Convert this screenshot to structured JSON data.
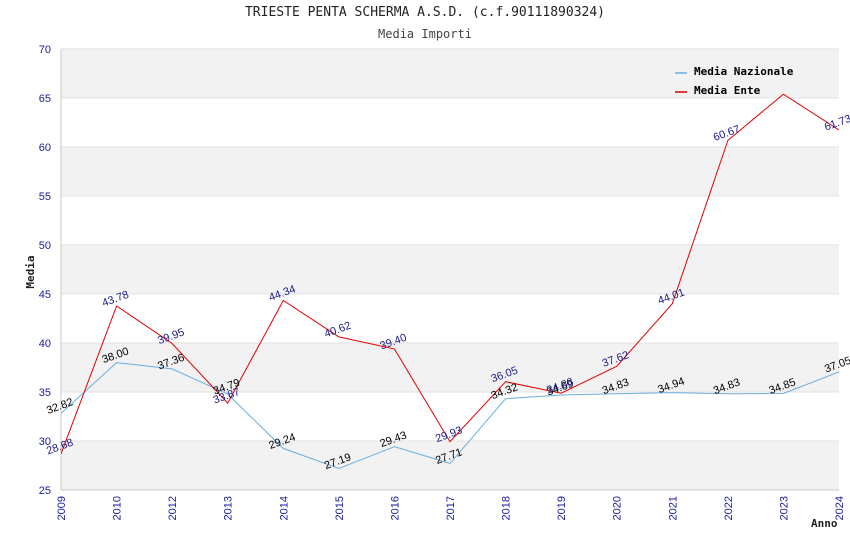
{
  "chart_data": {
    "type": "line",
    "title": "TRIESTE PENTA SCHERMA A.S.D. (c.f.90111890324)",
    "subtitle": "Media Importi",
    "xlabel": "Anno",
    "ylabel": "Media",
    "ylim": [
      25,
      70
    ],
    "yticks": [
      25,
      30,
      35,
      40,
      45,
      50,
      55,
      60,
      65,
      70
    ],
    "categories": [
      "2009",
      "2010",
      "2012",
      "2013",
      "2014",
      "2015",
      "2016",
      "2017",
      "2018",
      "2019",
      "2020",
      "2021",
      "2022",
      "2023",
      "2024"
    ],
    "legend_position": "top-right",
    "grid": true,
    "series": [
      {
        "name": "Media Nazionale",
        "color": "#6aaee0",
        "values": [
          32.82,
          38.0,
          37.36,
          34.79,
          29.24,
          27.19,
          29.43,
          27.71,
          34.32,
          34.69,
          34.83,
          34.94,
          34.83,
          34.85,
          37.05
        ],
        "labels": [
          "32.82",
          "38.00",
          "37.36",
          "34.79",
          "29.24",
          "27.19",
          "29.43",
          "27.71",
          "34.32",
          "34.69",
          "34.83",
          "34.94",
          "34.83",
          "34.85",
          "37.05"
        ]
      },
      {
        "name": "Media Ente",
        "color": "#e00000",
        "values": [
          28.68,
          43.78,
          39.95,
          33.87,
          44.34,
          40.62,
          39.4,
          29.93,
          36.05,
          34.88,
          37.62,
          44.01,
          60.67,
          65.39,
          61.73
        ],
        "labels": [
          "28.68",
          "43.78",
          "39.95",
          "33.87",
          "44.34",
          "40.62",
          "39.40",
          "29.93",
          "36.05",
          "34.88",
          "37.62",
          "44.01",
          "60.67",
          "",
          "61.73"
        ]
      }
    ]
  }
}
